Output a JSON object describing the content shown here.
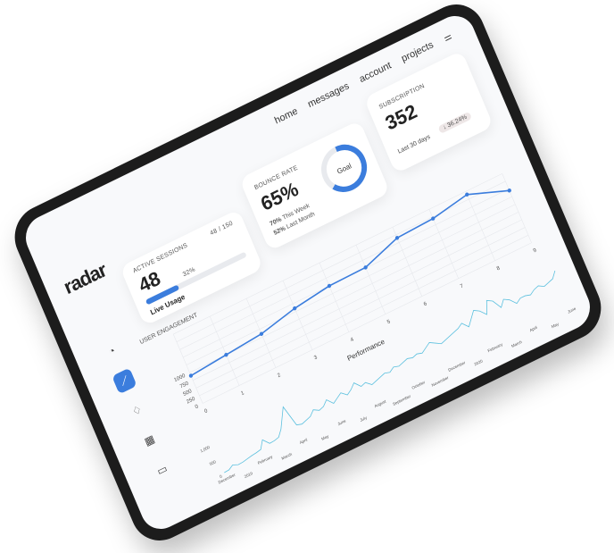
{
  "brand": {
    "logo": "radar"
  },
  "nav": {
    "items": [
      "home",
      "messages",
      "account",
      "projects"
    ],
    "filter_icon": "sliders-icon"
  },
  "sidebar": {
    "items": [
      {
        "icon": "pie-chart-icon"
      },
      {
        "icon": "graph-icon",
        "active": true
      },
      {
        "icon": "bell-icon"
      },
      {
        "icon": "calendar-icon"
      },
      {
        "icon": "browser-icon"
      }
    ]
  },
  "active_sessions": {
    "label": "ACTIVE SESSIONS",
    "value": "48",
    "percent_label": "32%",
    "ratio": "48 / 150",
    "progress": 0.32,
    "caption": "Live Usage"
  },
  "bounce_rate": {
    "label": "BOUNCE RATE",
    "value": "65%",
    "week_value": "70%",
    "week_label": "This Week",
    "month_value": "52%",
    "month_label": "Last Month",
    "ring_label": "Goal",
    "ring_progress": 0.65
  },
  "subscription": {
    "label": "SUBSCRIPTION",
    "value": "352",
    "period": "Last 30 days",
    "change": "↓ 36.24%"
  },
  "colors": {
    "accent": "#3b7ddd",
    "sparkline": "#5bc0de"
  },
  "chart_data": [
    {
      "type": "line",
      "title": "USER ENGAGEMENT",
      "x": [
        0,
        1,
        2,
        3,
        4,
        5,
        6,
        7,
        8,
        9
      ],
      "values": [
        900,
        1000,
        1100,
        1350,
        1500,
        1520,
        1900,
        1950,
        2150,
        1700
      ],
      "yticks": [
        0,
        250,
        500,
        750,
        1000
      ],
      "ylim": [
        0,
        2250
      ],
      "grid": true
    },
    {
      "type": "line",
      "title": "Performance",
      "xticks": [
        "December",
        "2019",
        "February",
        "March",
        "April",
        "May",
        "June",
        "July",
        "August",
        "September",
        "October",
        "November",
        "December",
        "2020",
        "February",
        "March",
        "April",
        "May",
        "June"
      ],
      "yticks": [
        "0",
        "500",
        "1,000"
      ],
      "values": [
        50,
        60,
        150,
        80,
        90,
        120,
        150,
        170,
        200,
        450,
        250,
        260,
        300,
        500,
        800,
        1100,
        400,
        350,
        400,
        450,
        600,
        500,
        550,
        700,
        500,
        600,
        700,
        550,
        650,
        800,
        600,
        650,
        500,
        550,
        600,
        650,
        600,
        700,
        650,
        700,
        750,
        700,
        750,
        700,
        800,
        900,
        800,
        700,
        750,
        800,
        850,
        900,
        1000,
        800,
        1000,
        1200,
        1100,
        900,
        1300,
        1200,
        900,
        1100,
        1000,
        800,
        900,
        900,
        850,
        950,
        1000,
        900,
        950,
        1000,
        1200
      ]
    }
  ]
}
